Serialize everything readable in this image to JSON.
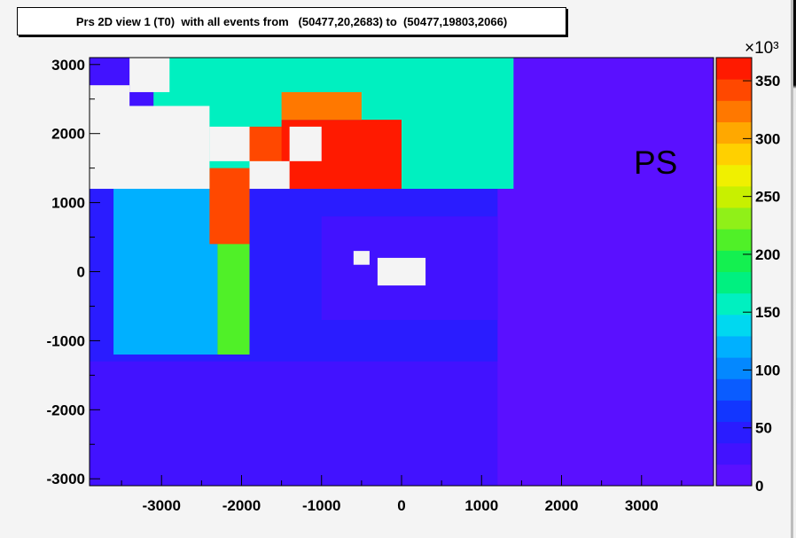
{
  "chart_data": {
    "type": "heatmap",
    "title": "Prs 2D view 1 (T0)  with all events from   (50477,20,2683) to  (50477,19803,2066)",
    "xlim": [
      -3900,
      3900
    ],
    "ylim": [
      -3100,
      3100
    ],
    "x_ticks": [
      -3000,
      -2000,
      -1000,
      0,
      1000,
      2000,
      3000
    ],
    "y_ticks": [
      3000,
      2000,
      1000,
      0,
      -1000,
      -2000,
      -3000
    ],
    "z_axis": {
      "multiplier_label": "×10³",
      "min": 0,
      "max": 370000,
      "ticks": [
        0,
        50,
        100,
        150,
        200,
        250,
        300,
        350
      ]
    },
    "annotation": "PS",
    "regions": [
      {
        "x": [
          -3900,
          3900
        ],
        "y": [
          -3100,
          3100
        ],
        "value": 12000
      },
      {
        "x": [
          -3900,
          1200
        ],
        "y": [
          -3100,
          1200
        ],
        "value": 20000
      },
      {
        "x": [
          -3900,
          1200
        ],
        "y": [
          -1300,
          1200
        ],
        "value": 40000
      },
      {
        "x": [
          -3900,
          2000
        ],
        "y": [
          1200,
          3100
        ],
        "value": 15000
      },
      {
        "x": [
          -3900,
          1400
        ],
        "y": [
          1200,
          3100
        ],
        "value": 160000
      },
      {
        "x": [
          -1000,
          1200
        ],
        "y": [
          -700,
          800
        ],
        "value": 25000
      },
      {
        "x": [
          -3600,
          -2300
        ],
        "y": [
          -1200,
          1200
        ],
        "value": 120000
      },
      {
        "x": [
          -2300,
          -1900
        ],
        "y": [
          -1200,
          1200
        ],
        "value": 220000
      },
      {
        "x": [
          -2400,
          -1900
        ],
        "y": [
          400,
          1500
        ],
        "value": 350000
      },
      {
        "x": [
          -1900,
          -1400
        ],
        "y": [
          1200,
          2100
        ],
        "value": 350000
      },
      {
        "x": [
          -1500,
          0
        ],
        "y": [
          1200,
          2200
        ],
        "value": 370000
      },
      {
        "x": [
          -1500,
          -500
        ],
        "y": [
          2200,
          2600
        ],
        "value": 330000
      },
      {
        "x": [
          -3900,
          -3100
        ],
        "y": [
          2400,
          3100
        ],
        "value": 30000
      }
    ],
    "empty_regions": [
      {
        "x": [
          -3900,
          -2400
        ],
        "y": [
          1200,
          2400
        ]
      },
      {
        "x": [
          -3400,
          -2900
        ],
        "y": [
          2600,
          3100
        ]
      },
      {
        "x": [
          -3900,
          -3400
        ],
        "y": [
          2000,
          2700
        ]
      },
      {
        "x": [
          -2400,
          -1900
        ],
        "y": [
          1600,
          2100
        ]
      },
      {
        "x": [
          -1900,
          -1400
        ],
        "y": [
          1200,
          1600
        ]
      },
      {
        "x": [
          -1400,
          -1000
        ],
        "y": [
          1600,
          2100
        ]
      },
      {
        "x": [
          -300,
          300
        ],
        "y": [
          -200,
          200
        ]
      },
      {
        "x": [
          -600,
          -400
        ],
        "y": [
          100,
          300
        ]
      }
    ]
  }
}
